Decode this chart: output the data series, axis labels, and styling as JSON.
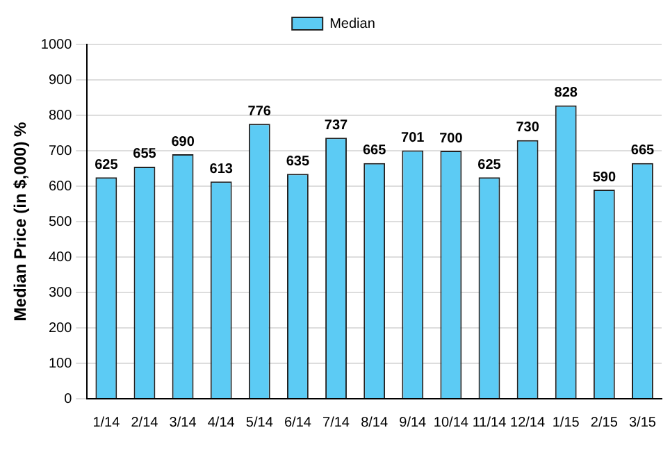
{
  "chart_data": {
    "type": "bar",
    "ylabel": "Median Price (in $,000) %",
    "categories": [
      "1/14",
      "2/14",
      "3/14",
      "4/14",
      "5/14",
      "6/14",
      "7/14",
      "8/14",
      "9/14",
      "10/14",
      "11/14",
      "12/14",
      "1/15",
      "2/15",
      "3/15"
    ],
    "series": [
      {
        "name": "Median",
        "color": "#5ccbf4",
        "values": [
          625,
          655,
          690,
          613,
          776,
          635,
          737,
          665,
          701,
          700,
          625,
          730,
          828,
          590,
          665
        ]
      }
    ],
    "ylim": [
      0,
      1000
    ],
    "yticks": [
      0,
      100,
      200,
      300,
      400,
      500,
      600,
      700,
      800,
      900,
      1000
    ],
    "grid": "y",
    "legend": "top",
    "data_labels": true
  }
}
